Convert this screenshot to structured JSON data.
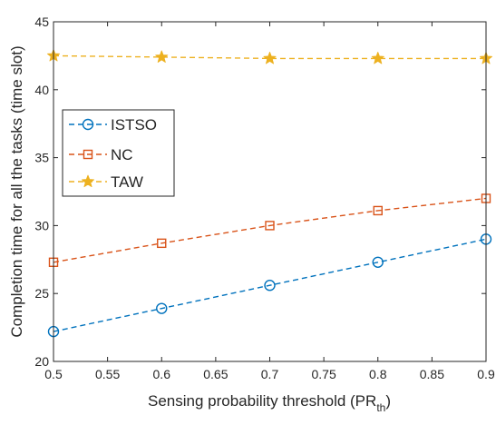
{
  "chart_data": {
    "type": "line",
    "title": "",
    "xlabel": "Sensing probability threshold (PR",
    "xlabel_sub": "th",
    "xlabel_close": ")",
    "ylabel": "Completion time for all the tasks (time slot)",
    "x": [
      0.5,
      0.6,
      0.7,
      0.8,
      0.9
    ],
    "xlim": [
      0.5,
      0.9
    ],
    "ylim": [
      20,
      45
    ],
    "xticks": [
      "0.5",
      "0.55",
      "0.6",
      "0.65",
      "0.7",
      "0.75",
      "0.8",
      "0.85",
      "0.9"
    ],
    "yticks": [
      "20",
      "25",
      "30",
      "35",
      "40",
      "45"
    ],
    "grid": false,
    "legend_position": "upper-left",
    "series": [
      {
        "name": "ISTSO",
        "color": "#0072BD",
        "marker": "circle",
        "values": [
          22.2,
          23.9,
          25.6,
          27.3,
          29.0
        ]
      },
      {
        "name": "NC",
        "color": "#D95319",
        "marker": "square",
        "values": [
          27.3,
          28.7,
          30.0,
          31.1,
          32.0
        ]
      },
      {
        "name": "TAW",
        "color": "#EDB120",
        "marker": "star",
        "values": [
          42.5,
          42.4,
          42.3,
          42.3,
          42.3
        ]
      }
    ]
  }
}
